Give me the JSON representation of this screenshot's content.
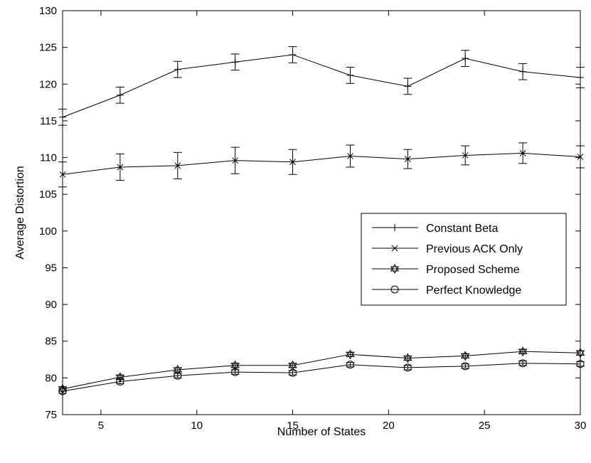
{
  "chart_data": {
    "type": "line",
    "title": "",
    "xlabel": "Number of States",
    "ylabel": "Average Distortion",
    "xlim": [
      3,
      30
    ],
    "ylim": [
      75,
      130
    ],
    "xticks": [
      5,
      10,
      15,
      20,
      25,
      30
    ],
    "yticks": [
      75,
      80,
      85,
      90,
      95,
      100,
      105,
      110,
      115,
      120,
      125,
      130
    ],
    "grid": false,
    "legend_position": "right",
    "x": [
      3,
      6,
      9,
      12,
      15,
      18,
      21,
      24,
      27,
      30
    ],
    "series": [
      {
        "name": "Constant Beta",
        "marker": "plus",
        "values": [
          115.5,
          118.5,
          122.0,
          123.0,
          124.0,
          121.2,
          119.7,
          123.5,
          121.7,
          120.9
        ],
        "error": [
          1.1,
          1.1,
          1.1,
          1.1,
          1.1,
          1.1,
          1.1,
          1.1,
          1.1,
          1.4
        ]
      },
      {
        "name": "Previous ACK Only",
        "marker": "x",
        "values": [
          107.7,
          108.7,
          108.9,
          109.6,
          109.4,
          110.2,
          109.8,
          110.3,
          110.6,
          110.1
        ],
        "error": [
          1.7,
          1.8,
          1.8,
          1.8,
          1.7,
          1.5,
          1.3,
          1.3,
          1.4,
          1.5
        ]
      },
      {
        "name": "Proposed Scheme",
        "marker": "hexagram",
        "values": [
          78.5,
          80.1,
          81.1,
          81.7,
          81.7,
          83.2,
          82.7,
          83.0,
          83.6,
          83.4
        ],
        "error": [
          0.3,
          0.3,
          0.3,
          0.3,
          0.3,
          0.3,
          0.3,
          0.3,
          0.3,
          0.3
        ]
      },
      {
        "name": "Perfect Knowledge",
        "marker": "circle",
        "values": [
          78.2,
          79.5,
          80.3,
          80.8,
          80.7,
          81.8,
          81.4,
          81.6,
          82.0,
          81.9
        ],
        "error": [
          0.3,
          0.3,
          0.3,
          0.3,
          0.3,
          0.3,
          0.3,
          0.3,
          0.3,
          0.3
        ]
      }
    ]
  }
}
